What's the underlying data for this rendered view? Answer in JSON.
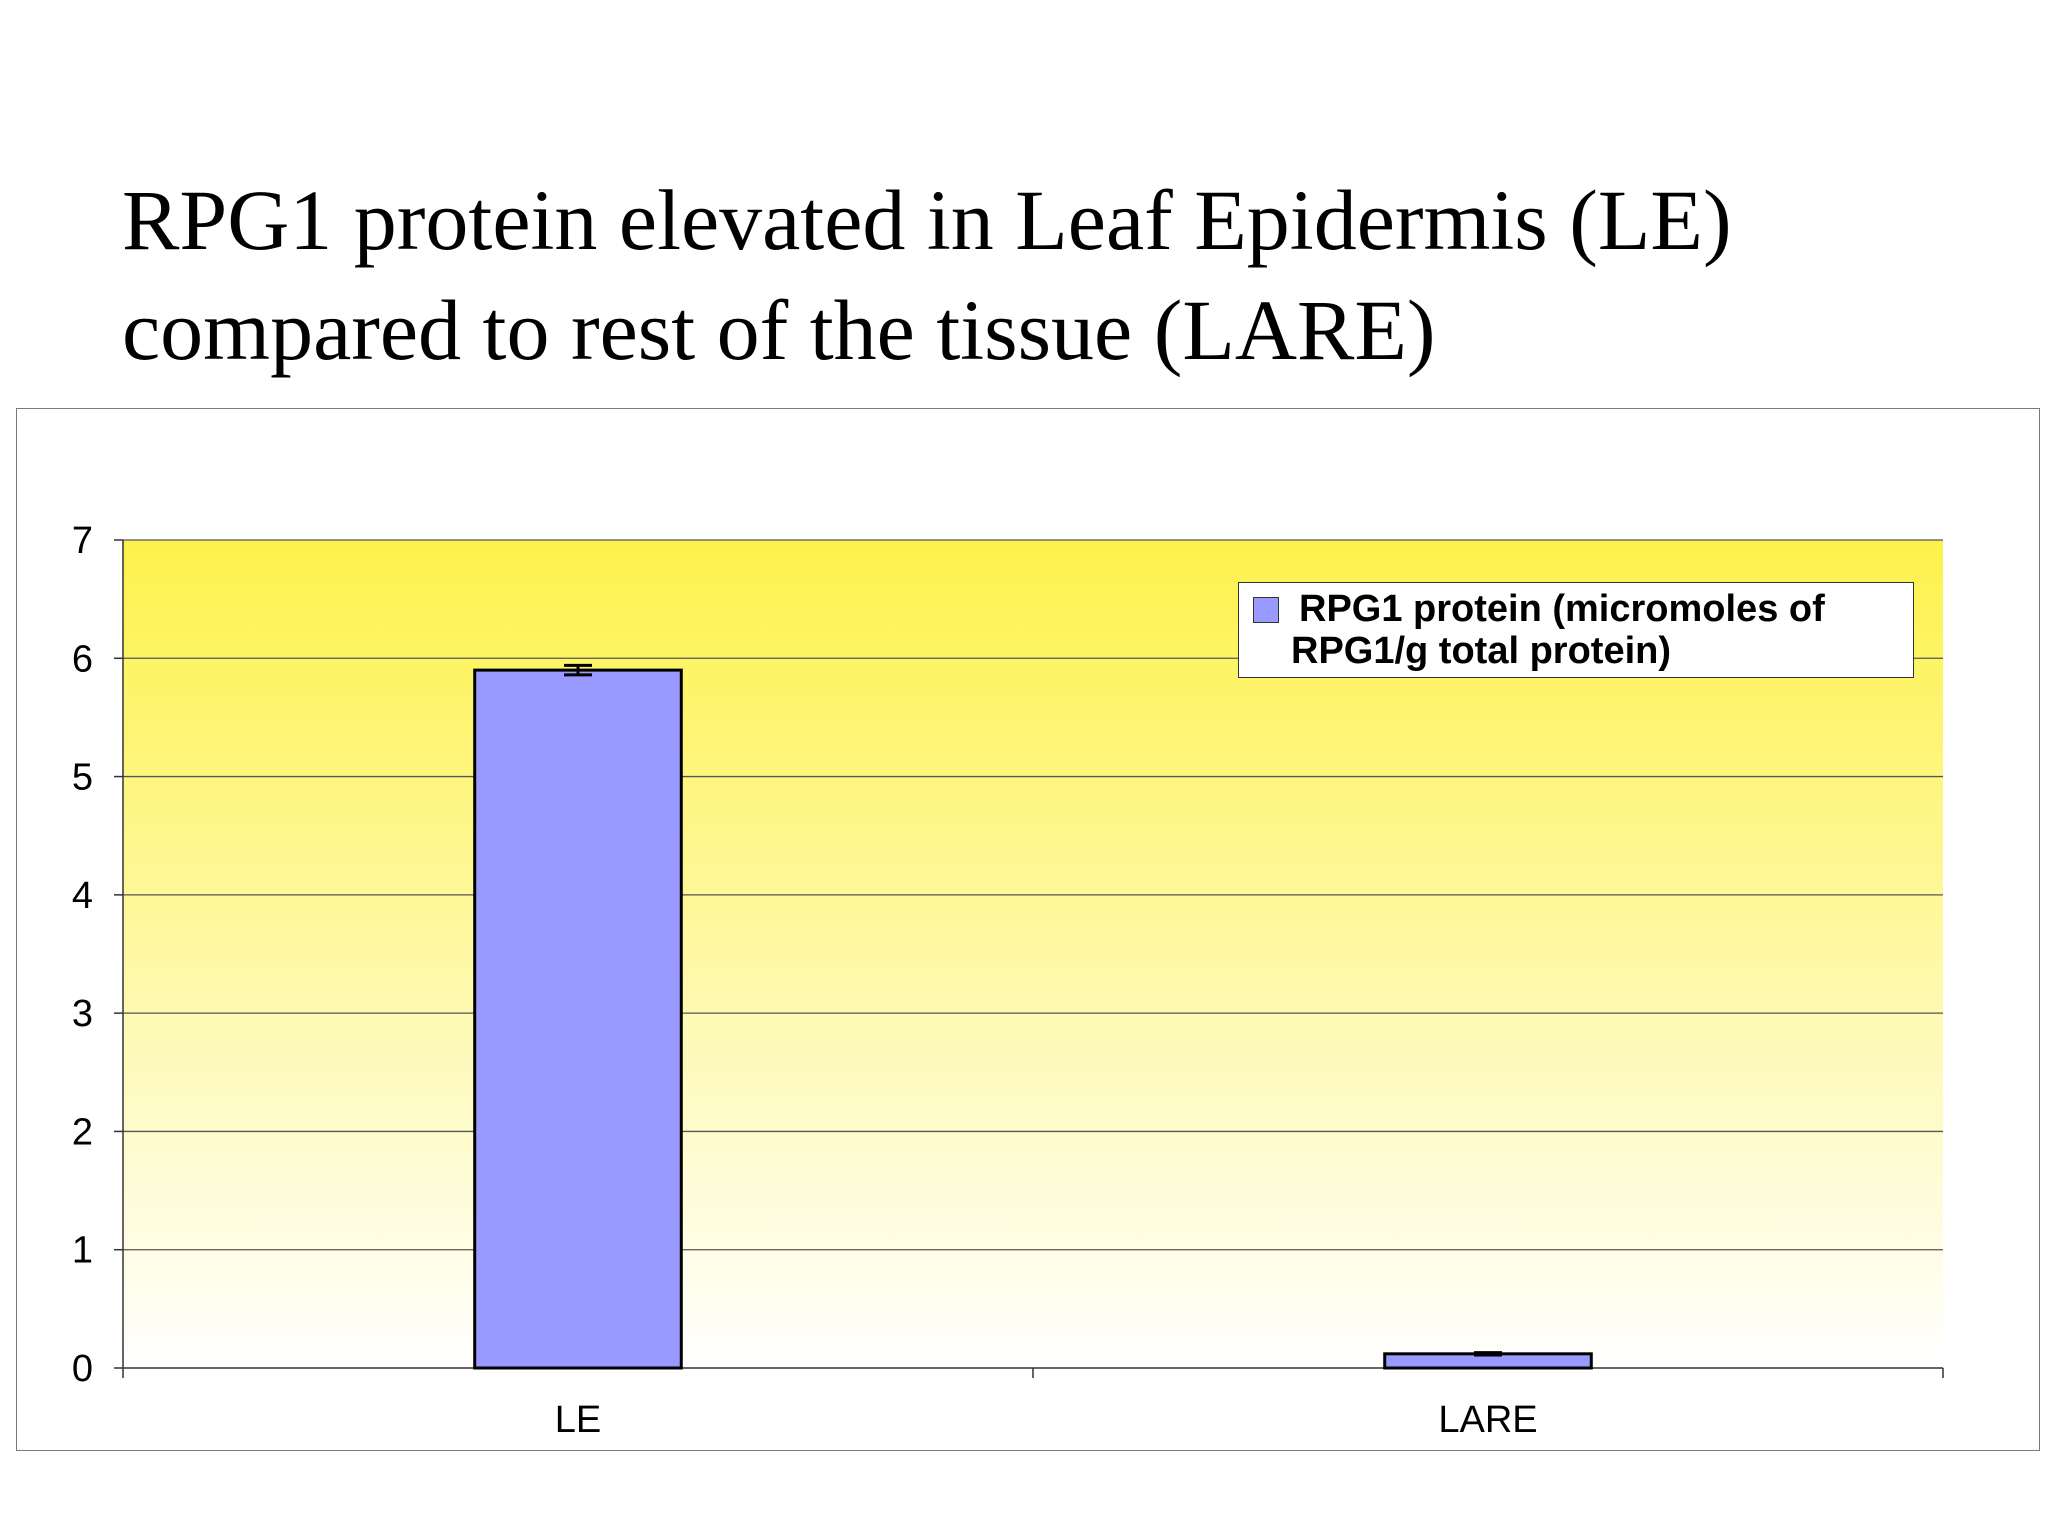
{
  "slide": {
    "title_line1": "RPG1 protein elevated in Leaf Epidermis (LE)",
    "title_line2": "compared to rest of the tissue (LARE)"
  },
  "colors": {
    "bar_fill": "#9999ff",
    "bar_stroke": "#000000",
    "plot_bg_top": "#fdf24b",
    "plot_bg_bottom": "#ffffff",
    "gridline": "#555555"
  },
  "chart_data": {
    "type": "bar",
    "categories": [
      "LE",
      "LARE"
    ],
    "series": [
      {
        "name": "RPG1 protein (micromoles of RPG1/g total protein)",
        "values": [
          5.9,
          0.12
        ],
        "error": [
          0.04,
          0.01
        ]
      }
    ],
    "title": "",
    "xlabel": "",
    "ylabel": "",
    "ylim": [
      0,
      7
    ],
    "yticks": [
      0,
      1,
      2,
      3,
      4,
      5,
      6,
      7
    ],
    "grid": true,
    "legend_position": "top-right",
    "legend_label": "RPG1 protein (micromoles of RPG1/g total protein)"
  }
}
